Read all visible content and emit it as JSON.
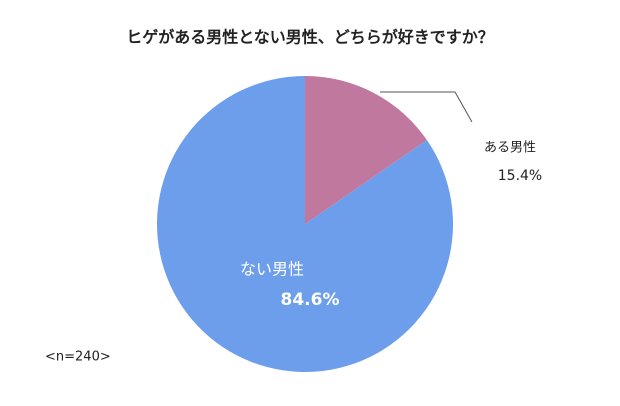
{
  "chart_data": {
    "type": "pie",
    "title": "ヒゲがある男性とない男性、どちらが好きですか？",
    "categories": [
      "ある男性",
      "ない男性"
    ],
    "values": [
      15.4,
      84.6
    ],
    "value_labels": [
      "15.4%",
      "84.6%"
    ],
    "colors": [
      "#c0789f",
      "#6d9eeb"
    ],
    "annotation": "<n=240>"
  }
}
